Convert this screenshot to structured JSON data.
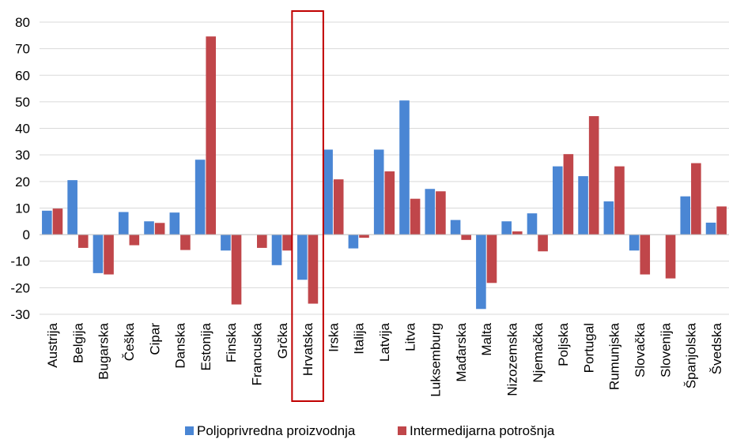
{
  "chart_data": {
    "type": "bar",
    "title": "",
    "xlabel": "",
    "ylabel": "",
    "ylim": [
      -30,
      80
    ],
    "yticks": [
      -30,
      -20,
      -10,
      0,
      10,
      20,
      30,
      40,
      50,
      60,
      70,
      80
    ],
    "grid": true,
    "legend": "bottom",
    "highlight_category": "Hrvatska",
    "colors": {
      "series1": "#4a86d4",
      "series2": "#c0464a",
      "highlight": "#c00000",
      "grid": "#d9d9d9"
    },
    "categories": [
      "Austrija",
      "Belgija",
      "Bugarska",
      "Češka",
      "Cipar",
      "Danska",
      "Estonija",
      "Finska",
      "Francuska",
      "Grčka",
      "Hrvatska",
      "Irska",
      "Italija",
      "Latvija",
      "Litva",
      "Luksemburg",
      "Mađarska",
      "Malta",
      "Nizozemska",
      "Njemačka",
      "Poljska",
      "Portugal",
      "Rumunjska",
      "Slovačka",
      "Slovenija",
      "Španjolska",
      "Švedska"
    ],
    "series": [
      {
        "name": "Poljoprivredna proizvodnja",
        "values": [
          9,
          20.5,
          -14.5,
          8.5,
          5,
          8.3,
          28.2,
          -6,
          0,
          -11.5,
          -17,
          32,
          -5.2,
          32,
          50.5,
          17.2,
          5.5,
          -28,
          5,
          8,
          25.7,
          22,
          12.5,
          -6,
          0,
          14.4,
          4.5
        ]
      },
      {
        "name": "Intermedijarna potrošnja",
        "values": [
          9.8,
          -5,
          -15,
          -4,
          4.4,
          -5.8,
          74.6,
          -26.3,
          -5,
          -6,
          -26,
          20.8,
          -1.2,
          23.8,
          13.5,
          16.3,
          -2,
          -18.2,
          1.2,
          -6.3,
          30.3,
          44.6,
          25.7,
          -15,
          -16.5,
          26.9,
          10.6
        ]
      }
    ]
  }
}
